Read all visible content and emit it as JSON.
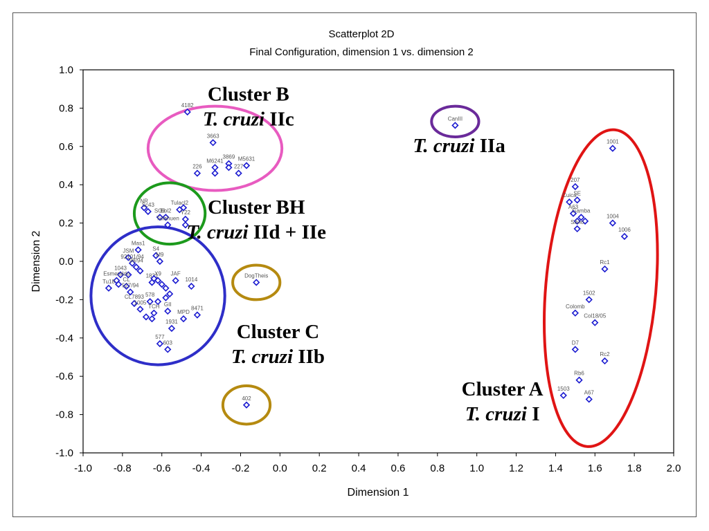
{
  "chart_data": {
    "type": "scatter",
    "title": "Scatterplot 2D",
    "subtitle": "Final Configuration, dimension 1  vs. dimension 2",
    "xlabel": "Dimension 1",
    "ylabel": "Dimension 2",
    "xlim": [
      -1.0,
      2.0
    ],
    "ylim": [
      -1.0,
      1.0
    ],
    "xticks": [
      "-1.0",
      "-0.8",
      "-0.6",
      "-0.4",
      "-0.2",
      "0.0",
      "0.2",
      "0.4",
      "0.6",
      "0.8",
      "1.0",
      "1.2",
      "1.4",
      "1.6",
      "1.8",
      "2.0"
    ],
    "yticks": [
      "1.0",
      "0.8",
      "0.6",
      "0.4",
      "0.2",
      "0.0",
      "-0.2",
      "-0.4",
      "-0.6",
      "-0.8",
      "-1.0"
    ],
    "grid": false,
    "marker_color": "#1a1ad0",
    "points": [
      {
        "label": "4182",
        "x": -0.47,
        "y": 0.78
      },
      {
        "label": "3663",
        "x": -0.34,
        "y": 0.62
      },
      {
        "label": "3869",
        "x": -0.26,
        "y": 0.51
      },
      {
        "label": "M6241",
        "x": -0.33,
        "y": 0.49
      },
      {
        "label": "M5631",
        "x": -0.17,
        "y": 0.5
      },
      {
        "label": "226",
        "x": -0.42,
        "y": 0.46
      },
      {
        "label": "",
        "x": -0.33,
        "y": 0.46
      },
      {
        "label": "",
        "x": -0.26,
        "y": 0.49
      },
      {
        "label": "227",
        "x": -0.21,
        "y": 0.46
      },
      {
        "label": "CanIII",
        "x": 0.89,
        "y": 0.71
      },
      {
        "label": "NR",
        "x": -0.69,
        "y": 0.28
      },
      {
        "label": "Sc43",
        "x": -0.67,
        "y": 0.26
      },
      {
        "label": "SO3",
        "x": -0.61,
        "y": 0.23
      },
      {
        "label": "Bol2",
        "x": -0.58,
        "y": 0.23
      },
      {
        "label": "Tulahuen",
        "x": -0.57,
        "y": 0.19
      },
      {
        "label": "Tulacl2",
        "x": -0.51,
        "y": 0.27
      },
      {
        "label": "",
        "x": -0.49,
        "y": 0.28
      },
      {
        "label": "Y22",
        "x": -0.48,
        "y": 0.22
      },
      {
        "label": "",
        "x": -0.48,
        "y": 0.19
      },
      {
        "label": "Mas1",
        "x": -0.72,
        "y": 0.06
      },
      {
        "label": "JSM",
        "x": -0.77,
        "y": 0.02
      },
      {
        "label": "92101/94",
        "x": -0.75,
        "y": -0.01
      },
      {
        "label": "98/94",
        "x": -0.73,
        "y": -0.03
      },
      {
        "label": "S4",
        "x": -0.63,
        "y": 0.03
      },
      {
        "label": "M9",
        "x": -0.61,
        "y": 0.0
      },
      {
        "label": "1043",
        "x": -0.81,
        "y": -0.07
      },
      {
        "label": "",
        "x": -0.77,
        "y": -0.07
      },
      {
        "label": "",
        "x": -0.71,
        "y": -0.05
      },
      {
        "label": "Esmeraldo",
        "x": -0.83,
        "y": -0.1
      },
      {
        "label": "",
        "x": -0.82,
        "y": -0.12
      },
      {
        "label": "Tu18",
        "x": -0.87,
        "y": -0.14
      },
      {
        "label": "CL",
        "x": -0.78,
        "y": -0.13
      },
      {
        "label": "527/94",
        "x": -0.76,
        "y": -0.16
      },
      {
        "label": "JAF",
        "x": -0.53,
        "y": -0.1
      },
      {
        "label": "1014",
        "x": -0.45,
        "y": -0.13
      },
      {
        "label": "1831",
        "x": -0.65,
        "y": -0.11
      },
      {
        "label": "",
        "x": -0.64,
        "y": -0.09
      },
      {
        "label": "X9",
        "x": -0.62,
        "y": -0.1
      },
      {
        "label": "",
        "x": -0.6,
        "y": -0.12
      },
      {
        "label": "",
        "x": -0.58,
        "y": -0.14
      },
      {
        "label": "",
        "x": -0.56,
        "y": -0.17
      },
      {
        "label": "CL7893",
        "x": -0.74,
        "y": -0.22
      },
      {
        "label": "1005",
        "x": -0.71,
        "y": -0.25
      },
      {
        "label": "578",
        "x": -0.66,
        "y": -0.21
      },
      {
        "label": "",
        "x": -0.62,
        "y": -0.21
      },
      {
        "label": "",
        "x": -0.58,
        "y": -0.19
      },
      {
        "label": "GII",
        "x": -0.57,
        "y": -0.26
      },
      {
        "label": "TCH",
        "x": -0.64,
        "y": -0.27
      },
      {
        "label": "",
        "x": -0.68,
        "y": -0.29
      },
      {
        "label": "",
        "x": -0.65,
        "y": -0.3
      },
      {
        "label": "MPD",
        "x": -0.49,
        "y": -0.3
      },
      {
        "label": "8471",
        "x": -0.42,
        "y": -0.28
      },
      {
        "label": "1931",
        "x": -0.55,
        "y": -0.35
      },
      {
        "label": "577",
        "x": -0.61,
        "y": -0.43
      },
      {
        "label": "603",
        "x": -0.57,
        "y": -0.46
      },
      {
        "label": "DogTheis",
        "x": -0.12,
        "y": -0.11
      },
      {
        "label": "402",
        "x": -0.17,
        "y": -0.75
      },
      {
        "label": "1001",
        "x": 1.69,
        "y": 0.59
      },
      {
        "label": "207",
        "x": 1.5,
        "y": 0.39
      },
      {
        "label": "SE",
        "x": 1.51,
        "y": 0.32
      },
      {
        "label": "Cuica",
        "x": 1.47,
        "y": 0.31
      },
      {
        "label": "A63",
        "x": 1.49,
        "y": 0.25
      },
      {
        "label": "Gamba",
        "x": 1.53,
        "y": 0.23
      },
      {
        "label": "",
        "x": 1.51,
        "y": 0.21
      },
      {
        "label": "",
        "x": 1.55,
        "y": 0.21
      },
      {
        "label": "Silvio",
        "x": 1.51,
        "y": 0.17
      },
      {
        "label": "1004",
        "x": 1.69,
        "y": 0.2
      },
      {
        "label": "1006",
        "x": 1.75,
        "y": 0.13
      },
      {
        "label": "Rc1",
        "x": 1.65,
        "y": -0.04
      },
      {
        "label": "1502",
        "x": 1.57,
        "y": -0.2
      },
      {
        "label": "Colomb",
        "x": 1.5,
        "y": -0.27
      },
      {
        "label": "Col18/05",
        "x": 1.6,
        "y": -0.32
      },
      {
        "label": "D7",
        "x": 1.5,
        "y": -0.46
      },
      {
        "label": "Rc2",
        "x": 1.65,
        "y": -0.52
      },
      {
        "label": "Rb6",
        "x": 1.52,
        "y": -0.62
      },
      {
        "label": "1503",
        "x": 1.44,
        "y": -0.7
      },
      {
        "label": "A67",
        "x": 1.57,
        "y": -0.72
      }
    ],
    "annotations": [
      {
        "name": "cluster-b",
        "line1": "Cluster B",
        "line2_it": "T. cruzi",
        "line2": " IIc",
        "x": -0.16,
        "y": 0.84
      },
      {
        "name": "t-cruzi-iia",
        "line1": "",
        "line2_it": "T. cruzi",
        "line2": " IIa",
        "x": 0.91,
        "y": 0.57
      },
      {
        "name": "cluster-bh",
        "line1": "Cluster BH",
        "line2_it": "T. cruzi",
        "line2": " IId + IIe",
        "x": -0.12,
        "y": 0.25
      },
      {
        "name": "cluster-c",
        "line1": "Cluster C",
        "line2_it": "T. cruzi",
        "line2": " IIb",
        "x": -0.01,
        "y": -0.4
      },
      {
        "name": "cluster-a",
        "line1": "Cluster A",
        "line2_it": "T. cruzi",
        "line2": " I",
        "x": 1.13,
        "y": -0.7
      }
    ],
    "ellipses": [
      {
        "name": "cluster-b-ellipse",
        "color": "#e85bc0",
        "cx": -0.33,
        "cy": 0.59,
        "rx": 0.34,
        "ry": 0.22
      },
      {
        "name": "t-cruzi-iia-ellipse",
        "color": "#6a2a9a",
        "cx": 0.89,
        "cy": 0.73,
        "rx": 0.12,
        "ry": 0.08
      },
      {
        "name": "cluster-bh-ellipse",
        "color": "#1c9a1c",
        "cx": -0.56,
        "cy": 0.25,
        "rx": 0.18,
        "ry": 0.16
      },
      {
        "name": "cluster-c-top-ellipse",
        "color": "#b58a10",
        "cx": -0.12,
        "cy": -0.11,
        "rx": 0.12,
        "ry": 0.09
      },
      {
        "name": "cluster-c-bottom-ellipse",
        "color": "#b58a10",
        "cx": -0.17,
        "cy": -0.75,
        "rx": 0.12,
        "ry": 0.1
      },
      {
        "name": "big-blue-ellipse",
        "color": "#2e2ec8",
        "cx": -0.62,
        "cy": -0.18,
        "rx": 0.34,
        "ry": 0.36
      },
      {
        "name": "cluster-a-ellipse",
        "color": "#e01414",
        "cx": 1.63,
        "cy": -0.14,
        "rx": 0.28,
        "ry": 0.83,
        "rotate": 5
      }
    ]
  }
}
